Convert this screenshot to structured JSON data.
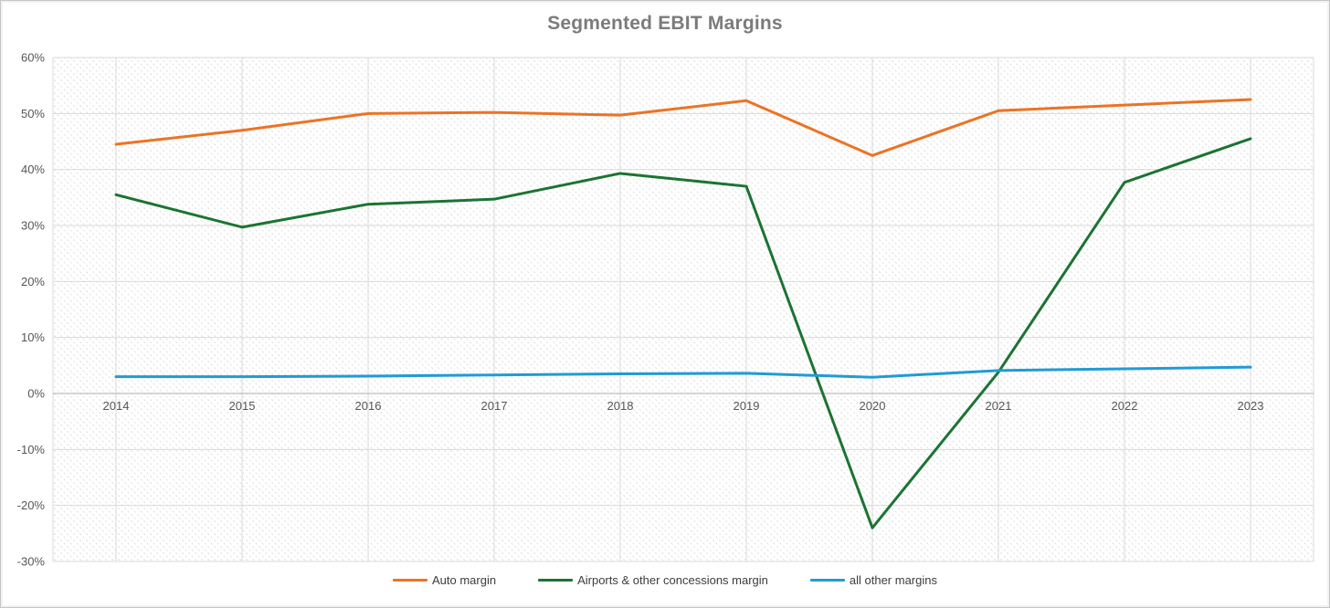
{
  "chart_data": {
    "type": "line",
    "title": "Segmented EBIT Margins",
    "xlabel": "",
    "ylabel": "",
    "categories": [
      "2014",
      "2015",
      "2016",
      "2017",
      "2018",
      "2019",
      "2020",
      "2021",
      "2022",
      "2023"
    ],
    "series": [
      {
        "name": "Auto margin",
        "color": "#ec7324",
        "values": [
          44.5,
          47.0,
          50.0,
          50.2,
          49.7,
          52.3,
          42.5,
          50.5,
          51.5,
          52.5
        ]
      },
      {
        "name": "Airports & other concessions margin",
        "color": "#1b7432",
        "values": [
          35.5,
          29.7,
          33.8,
          34.7,
          39.3,
          37.0,
          -24.0,
          3.8,
          37.7,
          45.5
        ]
      },
      {
        "name": "all other margins",
        "color": "#1f9bd7",
        "values": [
          3.0,
          3.0,
          3.1,
          3.3,
          3.5,
          3.6,
          2.9,
          4.1,
          4.4,
          4.7
        ]
      }
    ],
    "ylim": [
      -30,
      60
    ],
    "ytick_step": 10,
    "y_ticks": [
      "60%",
      "50%",
      "40%",
      "30%",
      "20%",
      "10%",
      "0%",
      "-10%",
      "-20%",
      "-30%"
    ],
    "grid": true,
    "legend_position": "bottom",
    "plot_background": "diagonal-hatch"
  },
  "style": {
    "gridline_color": "#dadada",
    "zero_axis_color": "#bdbdbd",
    "hatch_color": "#dcdcdc",
    "title_color": "#7b7b7b",
    "tick_label_color": "#565656",
    "legend_text_color": "#3d3d3d",
    "frame_border_color": "#c6c6c6"
  }
}
